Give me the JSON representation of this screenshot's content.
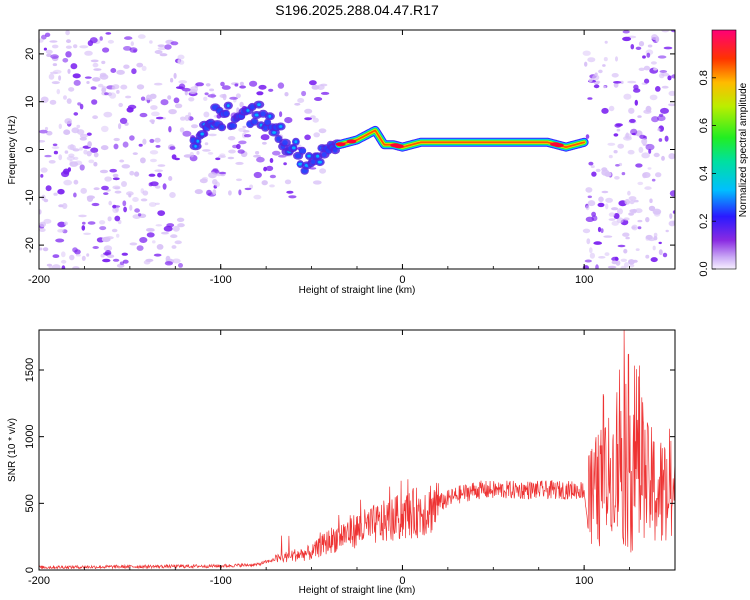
{
  "title": "S196.2025.288.04.47.R17",
  "colors": {
    "signal_red": "#ee3333",
    "speckle_purple": "#7a1ff0",
    "speckle_light": "#d9c2f7",
    "frame": "#000000"
  },
  "chart_data": [
    {
      "type": "heatmap",
      "title": "S196.2025.288.04.47.R17",
      "xlabel": "Height of straight line (km)",
      "ylabel": "Frequency (Hz)",
      "xlim": [
        -200,
        150
      ],
      "ylim": [
        -25,
        25
      ],
      "xticks": [
        -200,
        -100,
        0,
        100
      ],
      "yticks": [
        -20,
        -10,
        0,
        10,
        20
      ],
      "xtick_labels": [
        "-200",
        "-100",
        "0",
        "100"
      ],
      "ytick_labels": [
        "-20",
        "-10",
        "0",
        "10",
        "20"
      ],
      "colorbar": {
        "label": "Normalized spectral amplitude",
        "range": [
          0,
          1
        ],
        "ticks": [
          0.0,
          0.2,
          0.4,
          0.6,
          0.8
        ],
        "tick_labels": [
          "0.0",
          "0.2",
          "0.4",
          "0.6",
          "0.8"
        ]
      },
      "ridge": {
        "description": "dominant frequency trace",
        "x": [
          -110,
          -100,
          -90,
          -80,
          -75,
          -70,
          -65,
          -60,
          -55,
          -50,
          -45,
          -40,
          -35,
          -30,
          -25,
          -20,
          -15,
          -10,
          -5,
          0,
          10,
          20,
          40,
          60,
          80,
          90,
          100
        ],
        "y": [
          6,
          7,
          7,
          8,
          6,
          4,
          2,
          0,
          -2,
          -4,
          -1,
          1,
          1,
          1.5,
          2,
          3,
          4,
          1,
          1,
          0.5,
          1.5,
          1.5,
          1.5,
          1.5,
          1.5,
          0.5,
          1.5
        ]
      }
    },
    {
      "type": "line",
      "xlabel": "Height of straight line (km)",
      "ylabel": "SNR (10 * v/v)",
      "xlim": [
        -200,
        150
      ],
      "ylim": [
        0,
        1800
      ],
      "xticks": [
        -200,
        -100,
        0,
        100
      ],
      "yticks": [
        0,
        500,
        1000,
        1500
      ],
      "xtick_labels": [
        "-200",
        "-100",
        "0",
        "100"
      ],
      "ytick_labels": [
        "0",
        "500",
        "1000",
        "1500"
      ],
      "trend": {
        "x": [
          -200,
          -150,
          -100,
          -80,
          -70,
          -60,
          -50,
          -40,
          -30,
          -20,
          -10,
          0,
          10,
          20,
          30,
          40,
          60,
          80,
          100,
          102,
          110,
          120,
          130,
          140,
          150
        ],
        "y": [
          20,
          25,
          30,
          40,
          80,
          110,
          130,
          220,
          280,
          320,
          360,
          400,
          440,
          500,
          560,
          600,
          600,
          600,
          600,
          350,
          500,
          700,
          600,
          450,
          400
        ]
      }
    }
  ]
}
